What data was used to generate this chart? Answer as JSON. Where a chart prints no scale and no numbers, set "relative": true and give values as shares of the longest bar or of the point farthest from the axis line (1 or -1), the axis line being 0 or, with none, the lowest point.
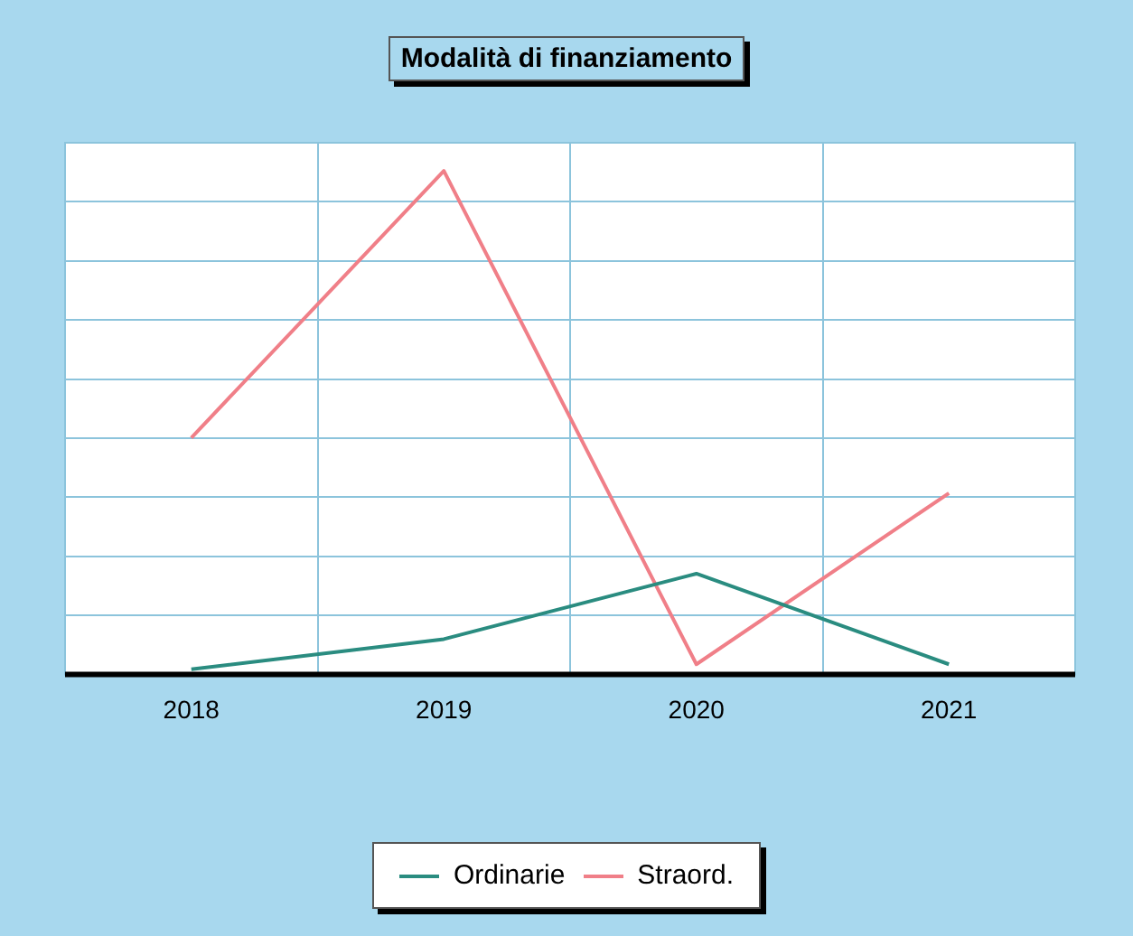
{
  "chart_data": {
    "type": "line",
    "title": "Modalità di finanziamento",
    "categories": [
      "2018",
      "2019",
      "2020",
      "2021"
    ],
    "relative": true,
    "grid": true,
    "legend": "bottom",
    "marker": "none",
    "series": [
      {
        "name": "Ordinarie",
        "color": "#2a8c80",
        "values": [
          0.01,
          0.07,
          0.2,
          0.02
        ]
      },
      {
        "name": "Straord.",
        "color": "#f07f88",
        "values": [
          0.47,
          1,
          0.02,
          0.36
        ]
      }
    ]
  }
}
